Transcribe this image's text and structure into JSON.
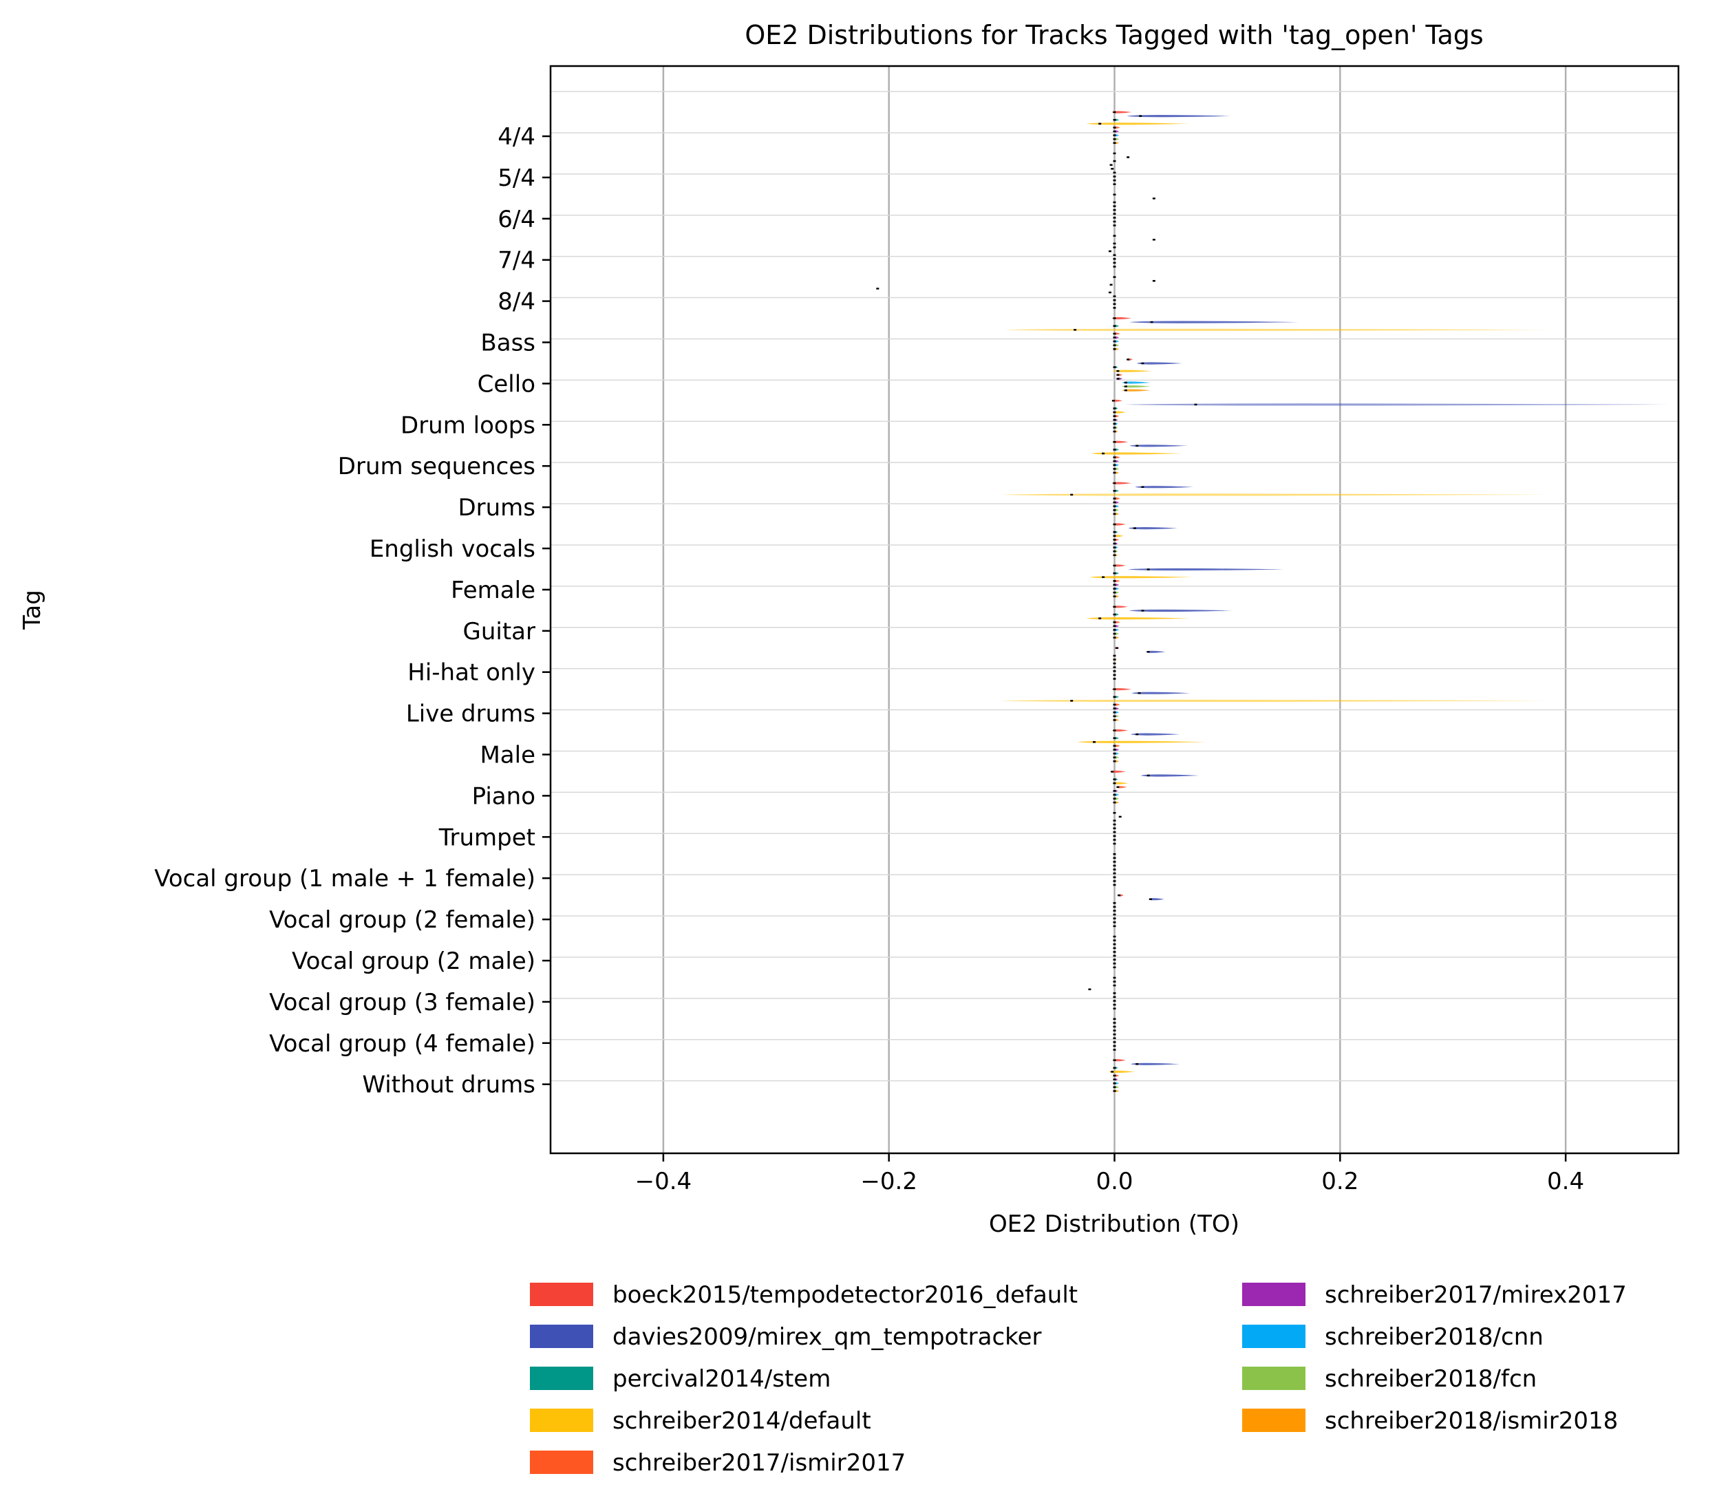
{
  "chart_data": {
    "type": "violin",
    "orientation": "horizontal",
    "title": "OE2 Distributions for Tracks Tagged with 'tag_open' Tags",
    "xlabel": "OE2 Distribution (TO)",
    "ylabel": "Tag",
    "xlim": [
      -0.5,
      0.5
    ],
    "x_ticks": [
      -0.4,
      -0.2,
      0.0,
      0.2,
      0.4
    ],
    "x_tick_labels": [
      "−0.4",
      "−0.2",
      "0.0",
      "0.2",
      "0.4"
    ],
    "grid": "vertical",
    "legend_placement": "below",
    "categories": [
      "4/4",
      "5/4",
      "6/4",
      "7/4",
      "8/4",
      "Bass",
      "Cello",
      "Drum loops",
      "Drum sequences",
      "Drums",
      "English vocals",
      "Female",
      "Guitar",
      "Hi-hat only",
      "Live drums",
      "Male",
      "Piano",
      "Trumpet",
      "Vocal group (1 male + 1 female)",
      "Vocal group (2 female)",
      "Vocal group (2 male)",
      "Vocal group (3 female)",
      "Vocal group (4 female)",
      "Without drums"
    ],
    "series": [
      {
        "name": "boeck2015/tempodetector2016_default",
        "color": "#f44336",
        "medians": [
          0.0,
          0.0,
          0.0,
          0.0,
          0.0,
          0.0,
          0.012,
          -0.001,
          0.0,
          0.0,
          0.0,
          0.0,
          0.0,
          0.002,
          0.0,
          0.0,
          -0.002,
          0.0,
          0.0,
          0.004,
          0.0,
          0.0,
          0.0,
          0.0
        ],
        "spread": [
          0.015,
          0.0,
          0.0,
          0.0,
          0.0,
          0.015,
          0.004,
          0.008,
          0.012,
          0.015,
          0.01,
          0.01,
          0.012,
          0.002,
          0.015,
          0.012,
          0.012,
          0.0,
          0.0,
          0.004,
          0.0,
          0.0,
          0.0,
          0.01
        ]
      },
      {
        "name": "davies2009/mirex_qm_tempotracker",
        "color": "#3f51b5",
        "medians": [
          0.023,
          0.012,
          0.035,
          0.035,
          0.035,
          0.033,
          0.025,
          0.072,
          0.02,
          0.025,
          0.018,
          0.03,
          0.025,
          0.03,
          0.022,
          0.02,
          0.03,
          0.005,
          0.0,
          0.032,
          0.0,
          0.0,
          0.0,
          0.02
        ],
        "spread": [
          0.08,
          0.0,
          0.0,
          0.0,
          0.0,
          0.13,
          0.035,
          0.42,
          0.045,
          0.045,
          0.038,
          0.12,
          0.08,
          0.015,
          0.045,
          0.038,
          0.045,
          0.0,
          0.0,
          0.012,
          0.0,
          0.0,
          0.0,
          0.038
        ]
      },
      {
        "name": "percival2014/stem",
        "color": "#009688",
        "medians": [
          0.0,
          0.0,
          0.0,
          0.0,
          -0.003,
          0.0,
          0.0,
          0.0,
          0.0,
          0.0,
          0.0,
          0.0,
          0.0,
          0.0,
          0.0,
          0.0,
          0.0,
          0.0,
          0.0,
          0.0,
          0.0,
          0.0,
          0.0,
          0.0
        ],
        "spread": [
          0.004,
          0.0,
          0.0,
          0.0,
          0.0,
          0.004,
          0.003,
          0.003,
          0.004,
          0.004,
          0.003,
          0.004,
          0.004,
          0.0,
          0.004,
          0.004,
          0.003,
          0.0,
          0.0,
          0.0,
          0.0,
          0.0,
          0.0,
          0.003
        ]
      },
      {
        "name": "schreiber2014/default",
        "color": "#ffc107",
        "medians": [
          -0.013,
          -0.003,
          0.0,
          0.0,
          -0.21,
          -0.035,
          0.003,
          0.0,
          -0.01,
          -0.038,
          0.0,
          -0.01,
          -0.013,
          0.0,
          -0.038,
          -0.018,
          0.0,
          0.0,
          0.0,
          0.0,
          0.0,
          -0.022,
          0.0,
          -0.002
        ],
        "spread": [
          0.08,
          0.0,
          0.0,
          0.0,
          0.0,
          0.42,
          0.03,
          0.01,
          0.07,
          0.42,
          0.008,
          0.08,
          0.08,
          0.002,
          0.42,
          0.1,
          0.012,
          0.0,
          0.0,
          0.0,
          0.0,
          0.0,
          0.0,
          0.02
        ]
      },
      {
        "name": "schreiber2017/ismir2017",
        "color": "#ff5722",
        "medians": [
          0.0,
          -0.002,
          0.0,
          -0.004,
          -0.004,
          0.0,
          0.003,
          0.0,
          0.0,
          0.0,
          0.0,
          0.0,
          0.0,
          0.0,
          0.0,
          0.0,
          0.003,
          0.0,
          0.0,
          0.0,
          0.0,
          0.0,
          0.0,
          0.0
        ],
        "spread": [
          0.005,
          0.0,
          0.0,
          0.0,
          0.0,
          0.005,
          0.004,
          0.004,
          0.005,
          0.005,
          0.004,
          0.005,
          0.005,
          0.0,
          0.005,
          0.005,
          0.008,
          0.0,
          0.0,
          0.0,
          0.0,
          0.0,
          0.0,
          0.004
        ]
      },
      {
        "name": "schreiber2017/mirex2017",
        "color": "#9c27b0",
        "medians": [
          0.0,
          0.0,
          0.0,
          0.0,
          0.0,
          0.0,
          0.003,
          0.0,
          0.0,
          0.0,
          0.0,
          0.0,
          0.0,
          0.0,
          0.0,
          0.0,
          0.0,
          0.0,
          0.0,
          0.0,
          0.0,
          0.0,
          0.0,
          0.0
        ],
        "spread": [
          0.004,
          0.0,
          0.0,
          0.0,
          0.0,
          0.004,
          0.004,
          0.003,
          0.004,
          0.004,
          0.003,
          0.004,
          0.004,
          0.0,
          0.004,
          0.004,
          0.003,
          0.0,
          0.0,
          0.0,
          0.0,
          0.0,
          0.0,
          0.003
        ]
      },
      {
        "name": "schreiber2018/cnn",
        "color": "#03a9f4",
        "medians": [
          0.0,
          0.0,
          0.0,
          0.0,
          0.0,
          0.0,
          0.01,
          0.0,
          0.0,
          0.0,
          0.0,
          0.0,
          0.0,
          0.0,
          0.0,
          0.0,
          0.0,
          0.0,
          0.0,
          0.0,
          0.0,
          0.0,
          0.0,
          0.0
        ],
        "spread": [
          0.004,
          0.0,
          0.0,
          0.0,
          0.0,
          0.004,
          0.022,
          0.003,
          0.004,
          0.004,
          0.003,
          0.004,
          0.004,
          0.0,
          0.004,
          0.004,
          0.004,
          0.0,
          0.0,
          0.0,
          0.0,
          0.0,
          0.0,
          0.004
        ]
      },
      {
        "name": "schreiber2018/fcn",
        "color": "#8bc34a",
        "medians": [
          0.0,
          0.0,
          0.0,
          0.0,
          0.0,
          0.0,
          0.01,
          0.0,
          0.0,
          0.0,
          0.0,
          0.0,
          0.0,
          0.0,
          0.0,
          0.0,
          0.0,
          0.0,
          0.0,
          0.0,
          0.0,
          0.0,
          0.0,
          0.0
        ],
        "spread": [
          0.004,
          0.0,
          0.0,
          0.0,
          0.0,
          0.004,
          0.022,
          0.003,
          0.004,
          0.004,
          0.003,
          0.004,
          0.004,
          0.0,
          0.004,
          0.004,
          0.004,
          0.0,
          0.0,
          0.0,
          0.0,
          0.0,
          0.0,
          0.004
        ]
      },
      {
        "name": "schreiber2018/ismir2018",
        "color": "#ff9800",
        "medians": [
          0.0,
          0.0,
          0.0,
          0.0,
          0.0,
          0.0,
          0.01,
          0.0,
          0.0,
          0.0,
          0.0,
          0.0,
          0.0,
          0.0,
          0.0,
          0.0,
          0.0,
          0.0,
          0.0,
          0.0,
          0.0,
          0.0,
          0.0,
          0.0
        ],
        "spread": [
          0.004,
          0.0,
          0.0,
          0.0,
          0.0,
          0.004,
          0.022,
          0.003,
          0.004,
          0.004,
          0.003,
          0.004,
          0.004,
          0.0,
          0.004,
          0.004,
          0.004,
          0.0,
          0.0,
          0.0,
          0.0,
          0.0,
          0.0,
          0.004
        ]
      }
    ]
  }
}
